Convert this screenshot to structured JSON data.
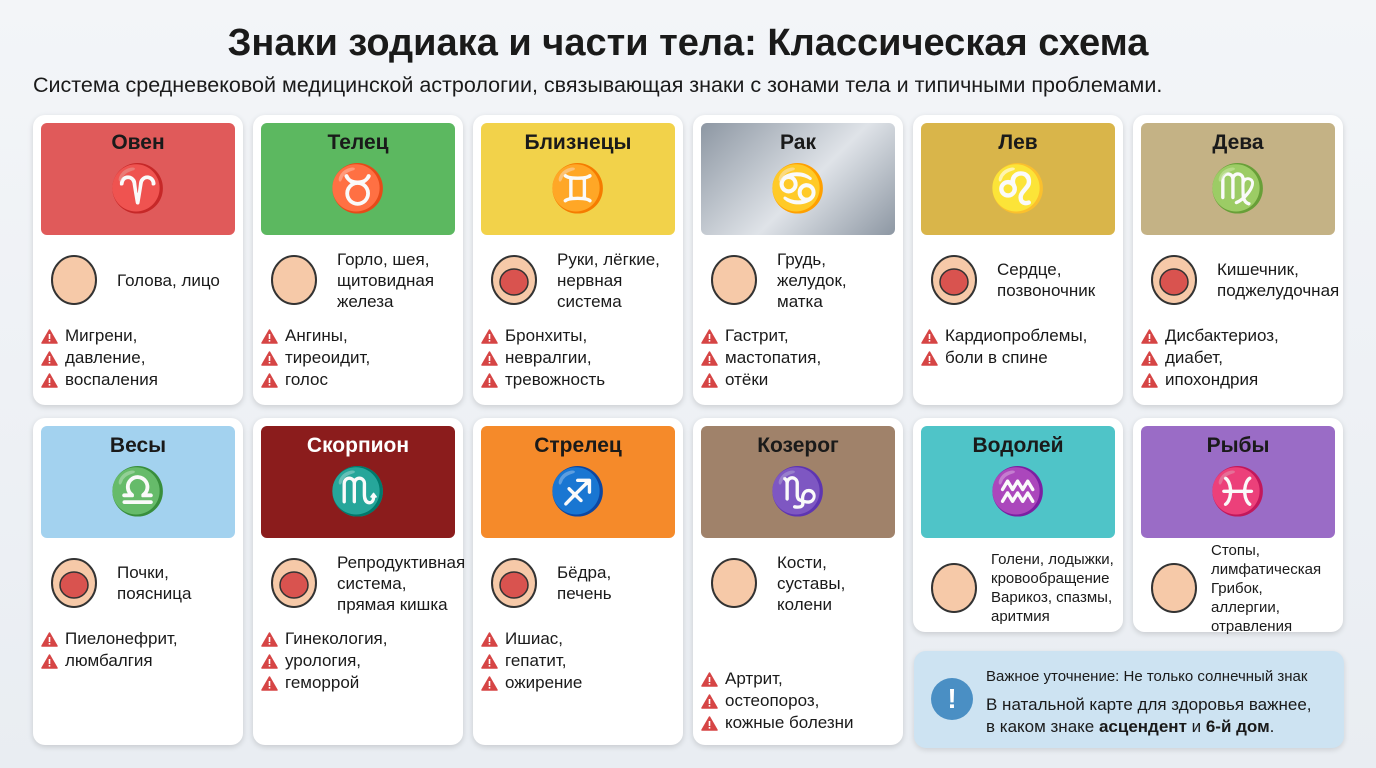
{
  "title": "Знаки зодиака и части тела: Классическая схема",
  "subtitle": "Система средневековой медицинской астрологии, связывающая знаки с зонами тела и типичными проблемами.",
  "signs": [
    {
      "name": "Овен",
      "glyph": "♈",
      "color": "#e05a5a",
      "text": "#1a1a1a",
      "zone": [
        "Голова, лицо"
      ],
      "problems": [
        "Мигрени,",
        "давление,",
        "воспаления"
      ],
      "icon": "ram-icon",
      "body_icon": "head-icon"
    },
    {
      "name": "Телец",
      "glyph": "♉",
      "color": "#5cb860",
      "text": "#1a1a1a",
      "zone": [
        "Горло, шея,",
        "щитовидная",
        "железа"
      ],
      "problems": [
        "Ангины,",
        "тиреоидит,",
        "голос"
      ],
      "icon": "bull-icon",
      "body_icon": "throat-icon"
    },
    {
      "name": "Близнецы",
      "glyph": "♊",
      "color": "#f2d24a",
      "text": "#1a1a1a",
      "zone": [
        "Руки, лёгкие,",
        "нервная",
        "система"
      ],
      "problems": [
        "Бронхиты,",
        "невралгии,",
        "тревожность"
      ],
      "icon": "twins-icon",
      "body_icon": "lungs-icon"
    },
    {
      "name": "Рак",
      "glyph": "♋",
      "color": "#b0b8c2",
      "text": "#1a1a1a",
      "zone": [
        "Грудь,",
        "желудок,",
        "матка"
      ],
      "problems": [
        "Гастрит,",
        "мастопатия,",
        "отёки"
      ],
      "icon": "crab-icon",
      "body_icon": "chest-icon"
    },
    {
      "name": "Лев",
      "glyph": "♌",
      "color": "#d9b54a",
      "text": "#1a1a1a",
      "zone": [
        "Сердце,",
        "позвоночник"
      ],
      "problems": [
        "Кардиопроблемы,",
        "боли в спине"
      ],
      "icon": "lion-icon",
      "body_icon": "heart-icon"
    },
    {
      "name": "Дева",
      "glyph": "♍",
      "color": "#c4b285",
      "text": "#1a1a1a",
      "zone": [
        "Кишечник,",
        "поджелудочная"
      ],
      "problems": [
        "Дисбактериоз,",
        "диабет,",
        "ипохондрия"
      ],
      "icon": "maiden-icon",
      "body_icon": "intestine-icon"
    },
    {
      "name": "Весы",
      "glyph": "♎",
      "color": "#a3d2ef",
      "text": "#1a1a1a",
      "zone": [
        "Почки,",
        "поясница"
      ],
      "problems": [
        "Пиелонефрит,",
        "люмбалгия"
      ],
      "icon": "scales-icon",
      "body_icon": "kidneys-icon"
    },
    {
      "name": "Скорпион",
      "glyph": "♏",
      "color": "#8b1c1c",
      "text": "#ffffff",
      "zone": [
        "Репродуктивная",
        "система,",
        "прямая кишка"
      ],
      "problems": [
        "Гинекология,",
        "урология,",
        "геморрой"
      ],
      "icon": "scorpion-icon",
      "body_icon": "uterus-icon"
    },
    {
      "name": "Стрелец",
      "glyph": "♐",
      "color": "#f58a2a",
      "text": "#1a1a1a",
      "zone": [
        "Бёдра,",
        "печень"
      ],
      "problems": [
        "Ишиас,",
        "гепатит,",
        "ожирение"
      ],
      "icon": "bow-icon",
      "body_icon": "liver-icon"
    },
    {
      "name": "Козерог",
      "glyph": "♑",
      "color": "#a0826a",
      "text": "#1a1a1a",
      "zone": [
        "Кости,",
        "суставы,",
        "колени"
      ],
      "problems": [
        "Артрит,",
        "остеопороз,",
        "кожные болезни"
      ],
      "icon": "goat-icon",
      "body_icon": "knee-icon"
    },
    {
      "name": "Водолей",
      "glyph": "♒",
      "color": "#4fc4c8",
      "text": "#1a1a1a",
      "zone": [
        "Голени, лодыжки,",
        "кровообращение",
        "Варикоз, спазмы,",
        "аритмия"
      ],
      "problems": [],
      "icon": "water-jug-icon",
      "body_icon": "legs-icon"
    },
    {
      "name": "Рыбы",
      "glyph": "♓",
      "color": "#9a6cc6",
      "text": "#1a1a1a",
      "zone": [
        "Стопы,",
        "лимфатическая",
        "Грибок, аллергии,",
        "отравления"
      ],
      "problems": [],
      "icon": "fish-icon",
      "body_icon": "feet-icon"
    }
  ],
  "note": {
    "heading": "Важное уточнение: Не только солнечный знак",
    "line1": "В натальной карте для здоровья важнее,",
    "line2_a": "в каком знаке ",
    "line2_b": "асцендент",
    "line2_c": " и ",
    "line2_d": "6-й дом",
    "line2_e": "."
  },
  "colors": {
    "warning": "#d64545",
    "note_icon": "#4a8fc4"
  }
}
